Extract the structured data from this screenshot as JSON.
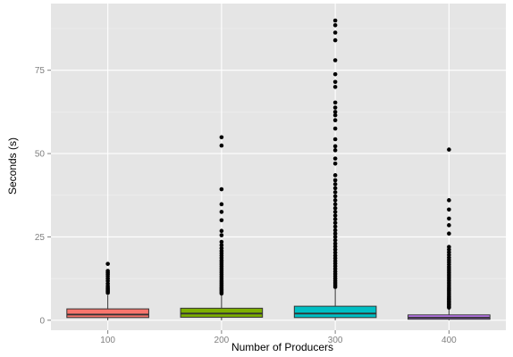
{
  "chart_data": {
    "type": "boxplot",
    "xlabel": "Number of Producers",
    "ylabel": "Seconds (s)",
    "ylim": [
      -3,
      95
    ],
    "y_ticks": [
      0,
      25,
      50,
      75
    ],
    "grid": true,
    "legend": "none",
    "background_color": "#e5e5e5",
    "grid_color": "#ffffff",
    "outlier_color": "#000000",
    "categories": [
      "100",
      "200",
      "300",
      "400"
    ],
    "boxes": [
      {
        "category": "100",
        "color": "#f8766d",
        "whisker_low": 0,
        "q1": 0.8,
        "median": 1.7,
        "q3": 3.4,
        "whisker_high": 7.5,
        "outliers": [
          8.2,
          8.6,
          9.0,
          9.4,
          9.8,
          10.3,
          11.0,
          11.8,
          12.5,
          13.2,
          13.8,
          14.3,
          14.8,
          16.9
        ]
      },
      {
        "category": "200",
        "color": "#7cae00",
        "whisker_low": 0,
        "q1": 0.9,
        "median": 2.0,
        "q3": 3.6,
        "whisker_high": 7.8,
        "outliers": [
          8.0,
          8.4,
          8.8,
          9.2,
          9.6,
          10.0,
          10.5,
          11.0,
          11.5,
          12.0,
          12.6,
          13.2,
          13.8,
          14.4,
          15.0,
          15.6,
          16.2,
          16.8,
          17.4,
          18.0,
          18.7,
          19.4,
          20.1,
          20.8,
          21.6,
          22.5,
          23.5,
          25.5,
          26.8,
          30.0,
          32.5,
          34.8,
          39.3,
          52.4,
          54.9
        ]
      },
      {
        "category": "300",
        "color": "#00bfc4",
        "whisker_low": 0,
        "q1": 0.8,
        "median": 2.0,
        "q3": 4.2,
        "whisker_high": 9.5,
        "outliers": [
          10.0,
          10.6,
          11.2,
          11.8,
          12.5,
          13.2,
          13.9,
          14.6,
          15.4,
          16.2,
          17.0,
          17.8,
          18.6,
          19.4,
          20.3,
          21.2,
          22.1,
          23.0,
          24.0,
          25.0,
          26.0,
          27.0,
          28.1,
          29.2,
          30.3,
          31.4,
          32.5,
          33.6,
          34.8,
          36.0,
          37.2,
          38.4,
          39.6,
          40.8,
          42.0,
          43.5,
          47.0,
          48.5,
          51.0,
          52.2,
          54.3,
          57.5,
          60.0,
          61.5,
          62.5,
          63.8,
          65.3,
          70.0,
          71.5,
          73.8,
          78.0,
          84.0,
          86.3,
          88.5,
          89.9
        ]
      },
      {
        "category": "400",
        "color": "#c77cff",
        "whisker_low": 0,
        "q1": 0.3,
        "median": 0.8,
        "q3": 1.6,
        "whisker_high": 3.5,
        "outliers": [
          3.8,
          4.2,
          4.6,
          5.0,
          5.4,
          5.8,
          6.2,
          6.6,
          7.0,
          7.5,
          8.0,
          8.5,
          9.0,
          9.5,
          10.0,
          10.6,
          11.2,
          11.8,
          12.4,
          13.0,
          13.6,
          14.2,
          14.8,
          15.4,
          16.0,
          16.7,
          17.4,
          18.1,
          18.8,
          19.6,
          20.4,
          21.2,
          22.0,
          26.0,
          28.5,
          30.5,
          33.2,
          36.0,
          51.2
        ]
      }
    ]
  }
}
